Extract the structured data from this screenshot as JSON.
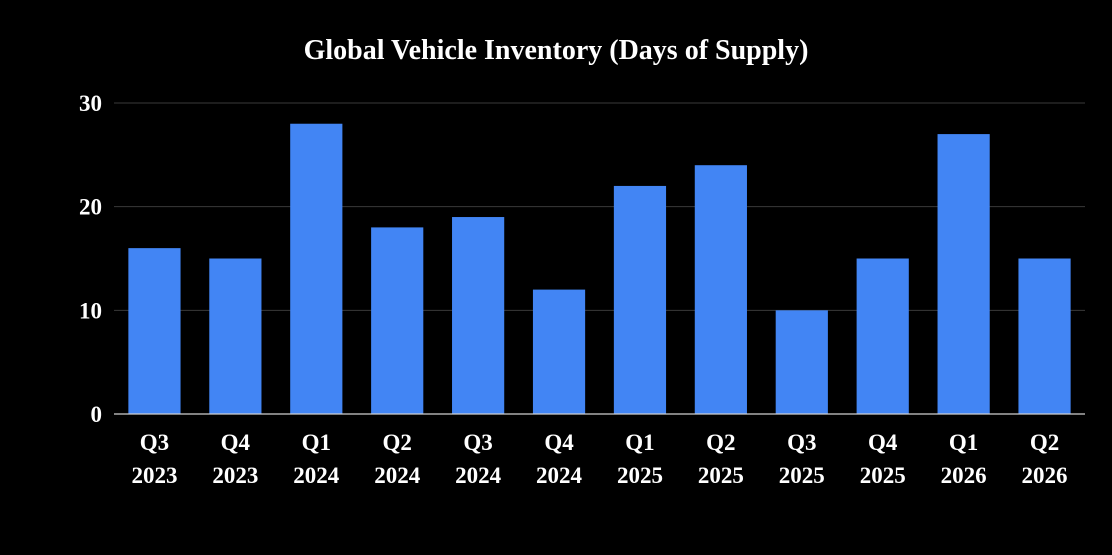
{
  "chart_data": {
    "type": "bar",
    "title": "Global Vehicle Inventory (Days of Supply)",
    "xlabel": "",
    "ylabel": "",
    "categories": [
      [
        "Q3",
        "2023"
      ],
      [
        "Q4",
        "2023"
      ],
      [
        "Q1",
        "2024"
      ],
      [
        "Q2",
        "2024"
      ],
      [
        "Q3",
        "2024"
      ],
      [
        "Q4",
        "2024"
      ],
      [
        "Q1",
        "2025"
      ],
      [
        "Q2",
        "2025"
      ],
      [
        "Q3",
        "2025"
      ],
      [
        "Q4",
        "2025"
      ],
      [
        "Q1",
        "2026"
      ],
      [
        "Q2",
        "2026"
      ]
    ],
    "values": [
      16,
      15,
      28,
      18,
      19,
      12,
      22,
      24,
      10,
      15,
      27,
      15
    ],
    "ylim": [
      0,
      30
    ],
    "yticks": [
      0,
      10,
      20,
      30
    ],
    "grid": true,
    "legend": "none"
  },
  "colors": {
    "background": "#000000",
    "bar": "#4285f4",
    "text": "#ffffff"
  }
}
